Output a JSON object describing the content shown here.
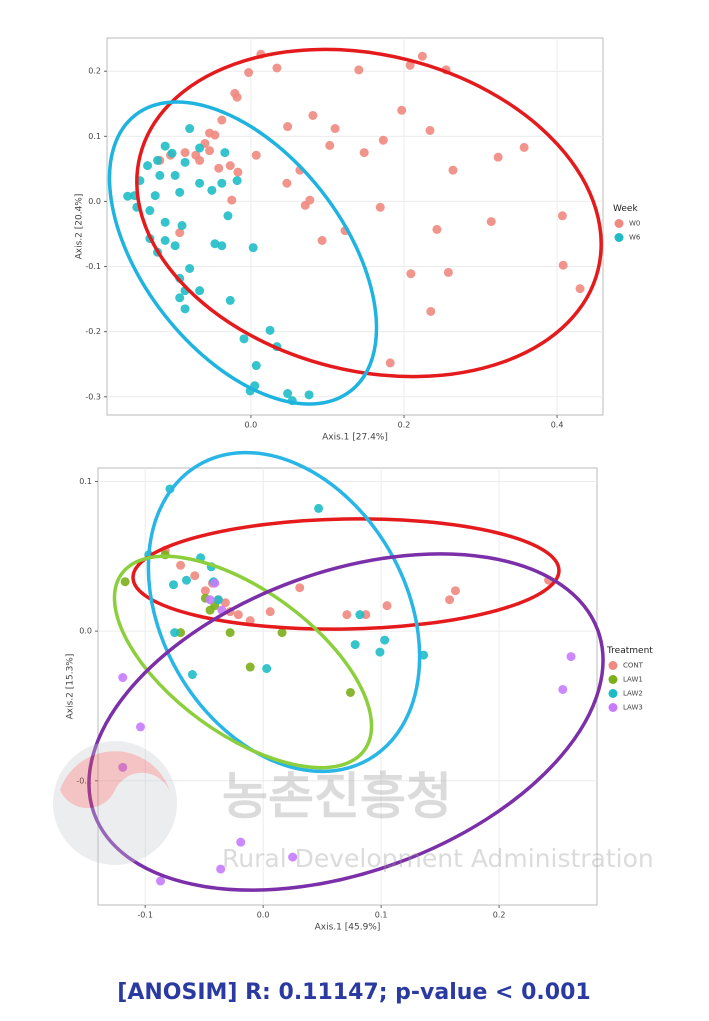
{
  "chart_data": [
    {
      "type": "scatter",
      "x_label": "Axis.1   [27.4%]",
      "y_label": "Axis.2   [20.4%]",
      "legend_title": "Week",
      "legend": "right",
      "grid": true,
      "xlim": [
        -0.188,
        0.46
      ],
      "ylim": [
        -0.328,
        0.251
      ],
      "xticks": [
        {
          "value": 0,
          "label": "0.0"
        },
        0.2,
        0.4
      ],
      "yticks": [
        0.2,
        0.1,
        {
          "value": 0,
          "label": "0.0"
        },
        -0.1,
        -0.2,
        -0.3
      ],
      "series": [
        {
          "name": "W0",
          "color": "#f08a80",
          "x": [
            0.013,
            0.034,
            -0.003,
            -0.021,
            -0.018,
            -0.038,
            -0.054,
            -0.047,
            -0.06,
            -0.054,
            -0.072,
            -0.086,
            -0.105,
            -0.119,
            -0.067,
            -0.027,
            0.007,
            0.048,
            0.081,
            0.11,
            0.103,
            0.141,
            0.208,
            0.224,
            0.255,
            0.197,
            0.234,
            0.173,
            0.148,
            0.064,
            0.047,
            0.071,
            0.077,
            0.093,
            0.123,
            0.169,
            0.243,
            0.209,
            0.258,
            0.235,
            0.182,
            0.264,
            0.323,
            0.357,
            0.314,
            0.407,
            0.408,
            0.43,
            -0.093,
            -0.025,
            -0.017,
            -0.042
          ],
          "values": [
            0.226,
            0.205,
            0.198,
            0.166,
            0.16,
            0.125,
            0.105,
            0.102,
            0.089,
            0.078,
            0.071,
            0.075,
            0.071,
            0.063,
            0.063,
            0.055,
            0.071,
            0.115,
            0.132,
            0.112,
            0.086,
            0.202,
            0.209,
            0.223,
            0.202,
            0.14,
            0.109,
            0.094,
            0.075,
            0.048,
            0.028,
            -0.006,
            0.002,
            -0.06,
            -0.045,
            -0.009,
            -0.043,
            -0.111,
            -0.109,
            -0.169,
            -0.248,
            0.048,
            0.068,
            0.083,
            -0.031,
            -0.022,
            -0.098,
            -0.134,
            -0.048,
            0.002,
            0.045,
            0.051
          ]
        },
        {
          "name": "W6",
          "color": "#1fbcc6",
          "x": [
            -0.08,
            -0.112,
            -0.122,
            -0.135,
            -0.119,
            -0.125,
            -0.132,
            -0.152,
            -0.161,
            -0.149,
            -0.145,
            -0.103,
            -0.086,
            -0.099,
            -0.093,
            -0.067,
            -0.051,
            -0.038,
            -0.018,
            -0.03,
            -0.038,
            -0.047,
            -0.09,
            -0.099,
            -0.112,
            -0.132,
            -0.122,
            -0.08,
            -0.093,
            -0.086,
            -0.093,
            -0.086,
            -0.067,
            -0.027,
            0.003,
            -0.009,
            0.025,
            0.034,
            0.007,
            -0.001,
            0.005,
            0.048,
            0.054,
            0.076,
            -0.067,
            -0.034,
            -0.112
          ],
          "values": [
            0.112,
            0.085,
            0.063,
            0.055,
            0.04,
            0.009,
            -0.014,
            0.009,
            0.008,
            -0.009,
            0.032,
            0.074,
            0.06,
            0.04,
            0.014,
            0.028,
            0.017,
            0.028,
            0.032,
            -0.022,
            -0.068,
            -0.065,
            -0.037,
            -0.068,
            -0.06,
            -0.057,
            -0.078,
            -0.103,
            -0.118,
            -0.137,
            -0.148,
            -0.165,
            -0.137,
            -0.152,
            -0.071,
            -0.211,
            -0.198,
            -0.223,
            -0.252,
            -0.291,
            -0.283,
            -0.295,
            -0.306,
            -0.297,
            0.082,
            0.075,
            -0.032
          ]
        }
      ]
    },
    {
      "type": "scatter",
      "x_label": "Axis.1   [45.9%]",
      "y_label": "Axis.2   [15.3%]",
      "legend_title": "Treatment",
      "legend": "right",
      "grid": true,
      "xlim": [
        -0.14,
        0.283
      ],
      "ylim": [
        -0.183,
        0.109
      ],
      "xticks": [
        -0.1,
        {
          "value": 0,
          "label": "0.0"
        },
        0.1,
        0.2
      ],
      "yticks": [
        0.1,
        {
          "value": 0,
          "label": "0.0"
        },
        -0.1
      ],
      "series": [
        {
          "name": "CONT",
          "color": "#f08a80",
          "x": [
            -0.083,
            -0.07,
            -0.058,
            -0.049,
            -0.038,
            -0.028,
            -0.021,
            -0.011,
            0.006,
            0.031,
            0.071,
            0.087,
            0.105,
            0.158,
            0.163,
            0.242,
            -0.032,
            -0.043
          ],
          "values": [
            0.054,
            0.044,
            0.037,
            0.027,
            0.021,
            0.013,
            0.011,
            0.007,
            0.013,
            0.029,
            0.011,
            0.011,
            0.017,
            0.021,
            0.027,
            0.034,
            0.019,
            0.032
          ]
        },
        {
          "name": "LAW1",
          "color": "#7cae1a",
          "x": [
            -0.117,
            -0.083,
            -0.07,
            -0.049,
            -0.041,
            -0.028,
            0.016,
            -0.011,
            0.074,
            -0.045
          ],
          "values": [
            0.033,
            0.051,
            -0.001,
            0.022,
            0.017,
            -0.001,
            -0.001,
            -0.024,
            -0.041,
            0.014
          ]
        },
        {
          "name": "LAW2",
          "color": "#1fbcc6",
          "x": [
            -0.079,
            0.047,
            -0.097,
            -0.076,
            -0.065,
            -0.053,
            -0.044,
            -0.042,
            -0.038,
            -0.06,
            0.003,
            0.082,
            0.078,
            0.099,
            0.103,
            0.136,
            -0.075
          ],
          "values": [
            0.095,
            0.082,
            0.051,
            0.031,
            0.034,
            0.049,
            0.043,
            0.033,
            0.021,
            -0.029,
            -0.025,
            0.011,
            -0.009,
            -0.014,
            -0.006,
            -0.016,
            -0.001
          ]
        },
        {
          "name": "LAW3",
          "color": "#c77cff",
          "x": [
            -0.041,
            -0.035,
            -0.119,
            -0.104,
            -0.119,
            -0.019,
            -0.036,
            0.025,
            -0.087,
            0.261,
            0.254,
            -0.045
          ],
          "values": [
            0.032,
            0.014,
            -0.031,
            -0.064,
            -0.091,
            -0.141,
            -0.159,
            -0.151,
            -0.167,
            -0.017,
            -0.039,
            0.021
          ]
        }
      ]
    }
  ],
  "watermark": {
    "title": "농촌진흥청",
    "subtitle": "Rural Development Administration"
  },
  "footer": "[ANOSIM] R: 0.11147; p-value < 0.001"
}
